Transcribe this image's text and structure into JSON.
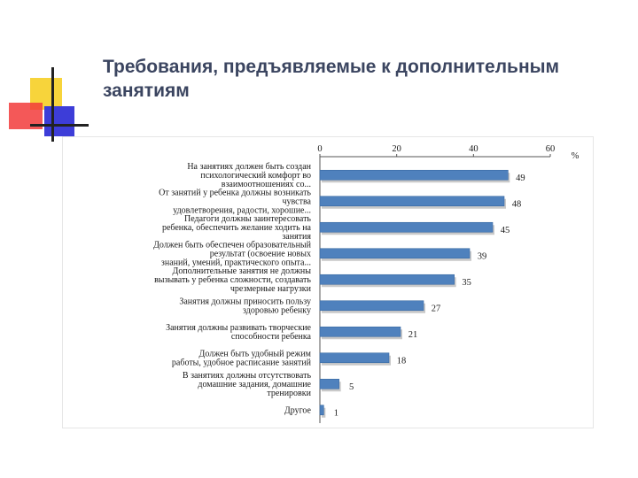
{
  "slide": {
    "title": "Требования, предъявляемые к дополнительным занятиям"
  },
  "colors": {
    "bar": "#4f81bd",
    "bar_edge": "#3a6aa3",
    "bar_shadow": "#c9c9c9",
    "axis": "#555555"
  },
  "chart_data": {
    "type": "bar",
    "orientation": "horizontal",
    "unit": "%",
    "xlim": [
      0,
      60
    ],
    "x_ticks": [
      0,
      20,
      40,
      60
    ],
    "x_axis_position": "top",
    "grid": false,
    "legend": "none",
    "categories": [
      [
        "На занятиях должен быть создан",
        "психологический комфорт во",
        "взаимоотношениях со..."
      ],
      [
        "От занятий у ребенка должны возникать",
        "чувства",
        "удовлетворения, радости, хорошие..."
      ],
      [
        "Педагоги должны заинтересовать",
        "ребенка, обеспечить желание ходить на",
        "занятия"
      ],
      [
        "Должен быть обеспечен образовательный",
        "результат (освоение новых",
        "знаний, умений, практического опыта..."
      ],
      [
        "Дополнительные занятия не должны",
        "вызывать у ребенка сложности, создавать",
        "чрезмерные нагрузки"
      ],
      [
        "Занятия должны приносить пользу",
        "здоровью ребенку"
      ],
      [
        "Занятия должны развивать творческие",
        "способности ребенка"
      ],
      [
        "Должен быть удобный режим",
        "работы, удобное расписание занятий"
      ],
      [
        "В занятиях должны отсутствовать",
        "домашние задания, домашние",
        "тренировки"
      ],
      [
        "Другое"
      ]
    ],
    "values": [
      49,
      48,
      45,
      39,
      35,
      27,
      21,
      18,
      5,
      1
    ]
  }
}
